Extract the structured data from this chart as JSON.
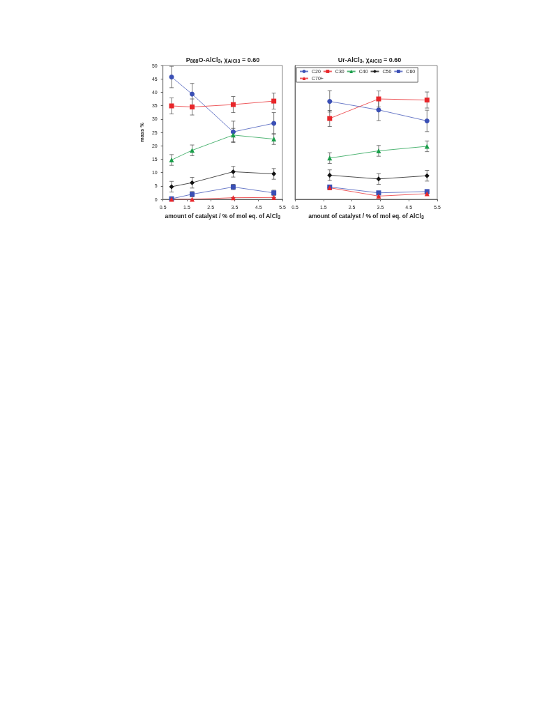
{
  "chart_data": [
    {
      "type": "line",
      "title": "P$_{888}$O-AlCl$_{3}$, χ$_{AlCl3}$ = 0.60",
      "xlabel": "amount of catalyst / % of mol eq. of AlCl$_{3}$",
      "ylabel": "mass %",
      "x": [
        0.86,
        1.72,
        3.44,
        5.14
      ],
      "xlim": [
        0.5,
        5.5
      ],
      "xticks": [
        0.5,
        1.5,
        2.5,
        3.5,
        4.5,
        5.5
      ],
      "ylim": [
        0,
        50
      ],
      "yticks": [
        0,
        5,
        10,
        15,
        20,
        25,
        30,
        35,
        40,
        45,
        50
      ],
      "grid": false,
      "legend": false,
      "series": [
        {
          "color": "#3a4fb5",
          "marker": "circle",
          "values": [
            45.7,
            39.3,
            25.2,
            28.4
          ],
          "errors": [
            4,
            4,
            4,
            4
          ]
        },
        {
          "color": "#e8262a",
          "marker": "square",
          "values": [
            34.9,
            34.5,
            35.4,
            36.7
          ],
          "errors": [
            3,
            3,
            3,
            3
          ]
        },
        {
          "color": "#1a9e4a",
          "marker": "triangle",
          "values": [
            14.7,
            18.3,
            24.0,
            22.5
          ],
          "errors": [
            2,
            2,
            2.5,
            2
          ]
        },
        {
          "color": "#111111",
          "marker": "diamond",
          "values": [
            4.7,
            6.2,
            10.3,
            9.5
          ],
          "errors": [
            2,
            2,
            2,
            2
          ]
        },
        {
          "color": "#3a4fb5",
          "marker": "square",
          "values": [
            0.2,
            1.9,
            4.6,
            2.4
          ],
          "errors": [
            null,
            1,
            1,
            1
          ]
        },
        {
          "color": "#e8262a",
          "marker": "triangle",
          "values": [
            0,
            0,
            0.6,
            0.7
          ],
          "errors": [
            null,
            null,
            null,
            null
          ]
        }
      ]
    },
    {
      "type": "line",
      "title": "Ur-AlCl$_{3}$, χ$_{AlCl3}$ = 0.60",
      "xlabel": "amount of catalyst / % of mol eq. of AlCl$_{3}$",
      "x": [
        1.72,
        3.44,
        5.14
      ],
      "xlim": [
        0.5,
        5.5
      ],
      "xticks": [
        0.5,
        1.5,
        2.5,
        3.5,
        4.5,
        5.5
      ],
      "ylim": [
        0,
        50
      ],
      "yticks": [
        0,
        5,
        10,
        15,
        20,
        25,
        30,
        35,
        40,
        45,
        50
      ],
      "tick_labels": "x",
      "grid": false,
      "legend": "top",
      "series": [
        {
          "name": "C20",
          "color": "#3a4fb5",
          "marker": "circle",
          "values": [
            36.6,
            33.4,
            29.3
          ],
          "errors": [
            4,
            4,
            4
          ]
        },
        {
          "name": "C30",
          "color": "#e8262a",
          "marker": "square",
          "values": [
            30.2,
            37.5,
            37.1
          ],
          "errors": [
            3,
            3,
            3
          ]
        },
        {
          "name": "C40",
          "color": "#1a9e4a",
          "marker": "triangle",
          "values": [
            15.4,
            18.1,
            19.8
          ],
          "errors": [
            2,
            2,
            2
          ]
        },
        {
          "name": "C50",
          "color": "#111111",
          "marker": "diamond",
          "values": [
            9.0,
            7.6,
            8.8
          ],
          "errors": [
            2,
            2,
            2
          ]
        },
        {
          "name": "C60",
          "color": "#3a4fb5",
          "marker": "square",
          "values": [
            4.6,
            2.4,
            2.9
          ],
          "errors": [
            null,
            null,
            null
          ]
        },
        {
          "name": "C70+",
          "color": "#e8262a",
          "marker": "triangle",
          "values": [
            4.3,
            1.2,
            2.1
          ],
          "errors": [
            null,
            null,
            null
          ]
        }
      ]
    }
  ]
}
